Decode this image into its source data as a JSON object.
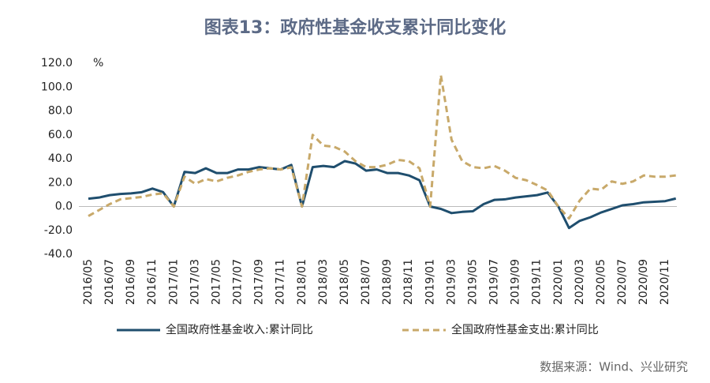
{
  "chart_data": {
    "type": "line",
    "title": "图表13：政府性基金收支累计同比变化",
    "y_unit": "%",
    "source": "数据来源：Wind、兴业研究",
    "categories": [
      "2016/05",
      null,
      "2016/07",
      null,
      "2016/09",
      null,
      "2016/11",
      null,
      "2017/01",
      null,
      "2017/03",
      null,
      "2017/05",
      null,
      "2017/07",
      null,
      "2017/09",
      null,
      "2017/11",
      null,
      "2018/01",
      null,
      "2018/03",
      null,
      "2018/05",
      null,
      "2018/07",
      null,
      "2018/09",
      null,
      "2018/11",
      null,
      "2019/01",
      null,
      "2019/03",
      null,
      "2019/05",
      null,
      "2019/07",
      null,
      "2019/09",
      null,
      "2019/11",
      null,
      "2020/01",
      null,
      "2020/03",
      null,
      "2020/05",
      null,
      "2020/07",
      null,
      "2020/09",
      null,
      "2020/11",
      null
    ],
    "series": [
      {
        "name": "全国政府性基金收入:累计同比",
        "color": "#1f4e6e",
        "dash": false,
        "values": [
          6.5,
          7.5,
          9.5,
          10.5,
          11,
          12,
          15,
          12,
          0,
          29,
          28,
          32,
          28,
          28,
          31,
          31,
          33,
          32,
          31,
          34.8,
          0,
          33,
          34,
          33,
          38,
          36,
          30,
          31,
          28,
          28,
          26,
          22,
          0,
          -2,
          -5.5,
          -4.5,
          -4,
          2,
          5.5,
          6,
          7.5,
          8.5,
          9.5,
          11.7,
          0,
          -18,
          -12,
          -9,
          -5,
          -2,
          1,
          2,
          3.5,
          4,
          4.5,
          6.7
        ]
      },
      {
        "name": "全国政府性基金支出:累计同比",
        "color": "#c8a96a",
        "dash": true,
        "values": [
          -8,
          -3,
          2,
          6,
          7,
          8,
          10,
          11,
          0,
          25,
          19,
          23,
          21,
          24,
          26,
          29,
          31,
          32,
          31,
          32.8,
          0,
          60,
          51,
          50,
          46,
          38,
          33,
          33,
          35,
          39,
          38,
          32,
          0,
          110,
          56,
          38,
          33,
          32,
          34,
          30,
          24,
          22,
          18,
          13.4,
          0,
          -10,
          5,
          15,
          14,
          21,
          19,
          21,
          26,
          25,
          25,
          26
        ]
      }
    ],
    "ylim": [
      -40,
      120
    ],
    "yticks": [
      {
        "value": -40,
        "label": "-40.0"
      },
      {
        "value": -20,
        "label": "-20.0"
      },
      {
        "value": 0,
        "label": "0.0"
      },
      {
        "value": 20,
        "label": "20.0"
      },
      {
        "value": 40,
        "label": "40.0"
      },
      {
        "value": 60,
        "label": "60.0"
      },
      {
        "value": 80,
        "label": "80.0"
      },
      {
        "value": 100,
        "label": "100.0"
      },
      {
        "value": 120,
        "label": "120.0"
      }
    ],
    "grid": false
  }
}
